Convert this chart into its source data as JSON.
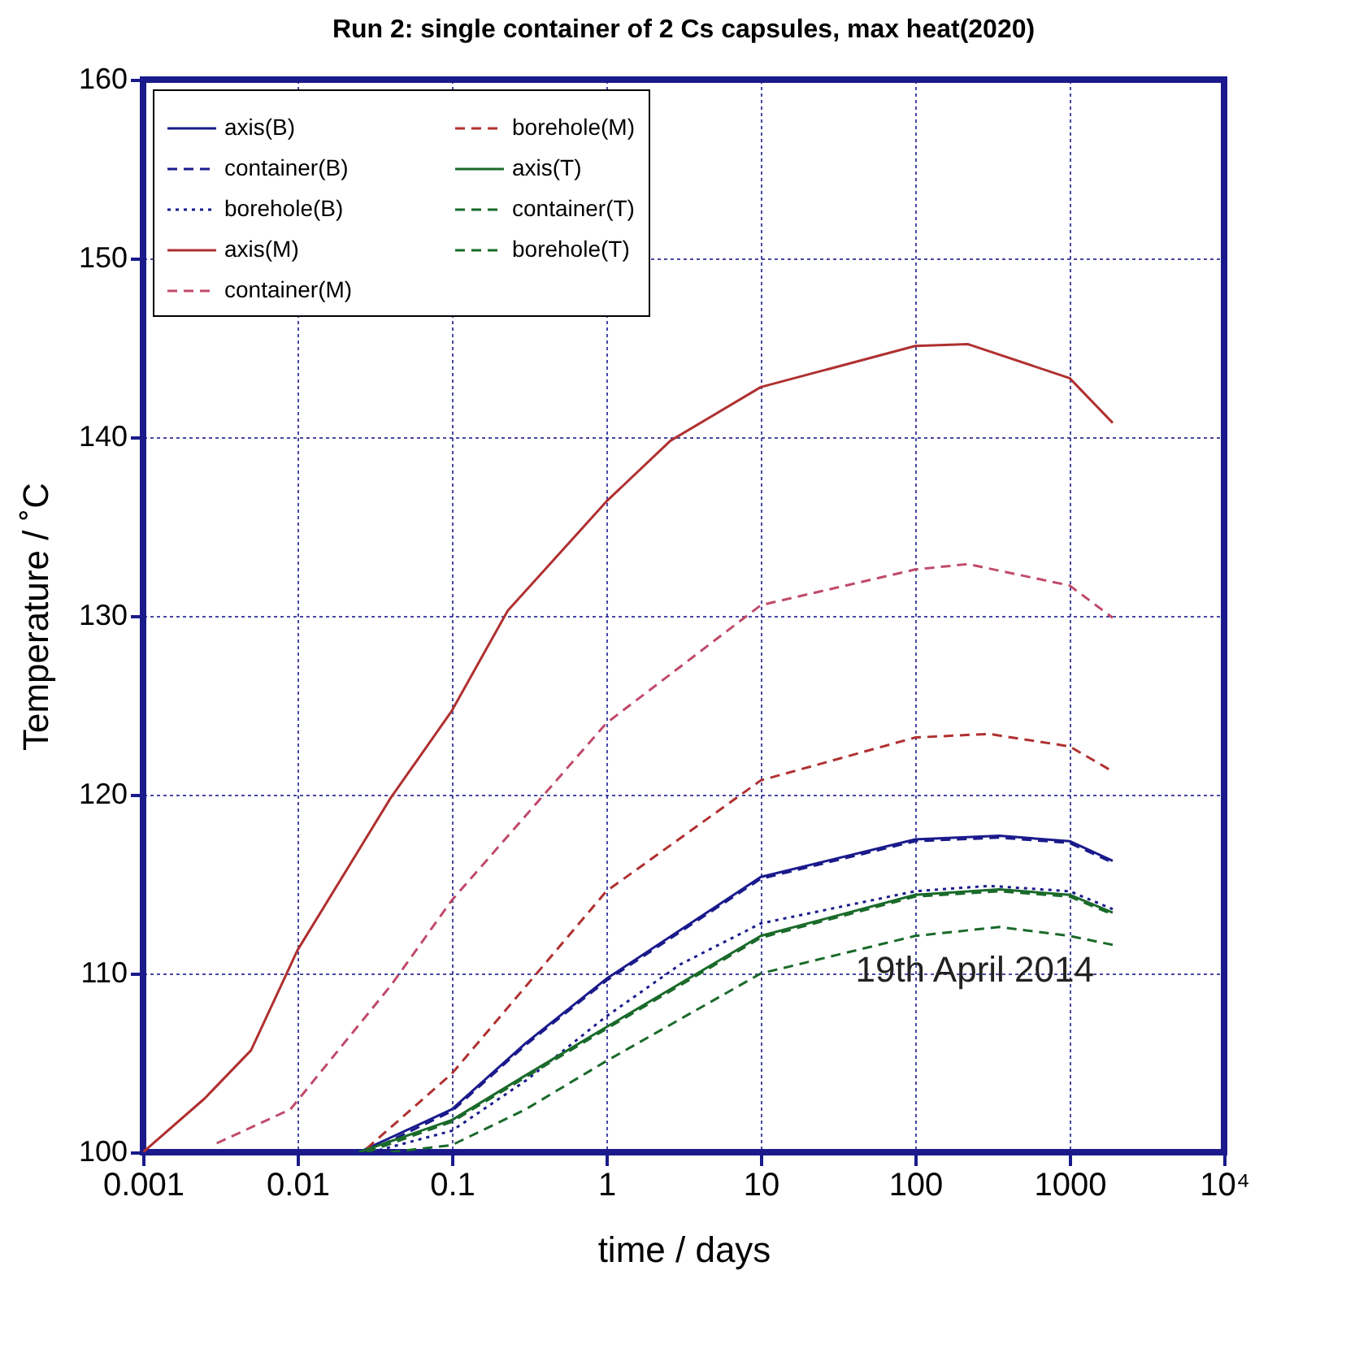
{
  "chart_data": {
    "type": "line",
    "title": "Run 2: single container of 2 Cs capsules, max heat(2020)",
    "xlabel": "time / days",
    "ylabel": "Temperature / ˚C",
    "log": "x",
    "xlim": [
      0.001,
      10000
    ],
    "xticks": [
      0.001,
      0.01,
      0.1,
      1,
      10,
      100,
      1000,
      {
        "value": 10000,
        "label": "10⁴"
      }
    ],
    "ylim": [
      100,
      160
    ],
    "yticks": [
      100,
      110,
      120,
      130,
      140,
      150,
      160
    ],
    "grid": true,
    "legend": "top left",
    "annotations": [
      "19th April 2014"
    ],
    "series": [
      {
        "name": "axis(B)",
        "color": "#1a1a8c",
        "line_style": "solid",
        "x": [
          0.025,
          0.1,
          0.3,
          1,
          10,
          100,
          350,
          1000,
          1900
        ],
        "values": [
          100,
          102.4,
          106.1,
          109.7,
          115.4,
          117.5,
          117.7,
          117.4,
          116.3
        ]
      },
      {
        "name": "container(B)",
        "color": "#1a1a8c",
        "line_style": "dashed",
        "x": [
          0.028,
          0.1,
          0.3,
          1,
          10,
          100,
          350,
          1000,
          1900
        ],
        "values": [
          100,
          102.3,
          106.0,
          109.6,
          115.3,
          117.4,
          117.6,
          117.3,
          116.2
        ]
      },
      {
        "name": "borehole(B)",
        "color": "#1a1a8c",
        "line_style": "dotted",
        "x": [
          0.03,
          0.1,
          0.3,
          1,
          3,
          10,
          100,
          300,
          1000,
          1900
        ],
        "values": [
          100,
          101.2,
          104.0,
          107.6,
          110.5,
          112.8,
          114.6,
          114.9,
          114.6,
          113.6
        ]
      },
      {
        "name": "axis(M)",
        "color": "#b03030",
        "line_style": "solid",
        "x": [
          0.001,
          0.0025,
          0.005,
          0.01,
          0.04,
          0.1,
          0.23,
          1,
          2.6,
          10,
          100,
          220,
          1000,
          1900
        ],
        "values": [
          100,
          103,
          105.7,
          111.3,
          119.8,
          124.7,
          130.3,
          136.4,
          139.8,
          142.8,
          145.1,
          145.2,
          143.3,
          140.8
        ]
      },
      {
        "name": "container(M)",
        "color": "#c04a6a",
        "line_style": "dashed",
        "x": [
          0.003,
          0.009,
          0.04,
          0.1,
          1,
          10,
          100,
          220,
          1000,
          1900
        ],
        "values": [
          100.5,
          102.4,
          109.3,
          114.1,
          124.0,
          130.6,
          132.6,
          132.9,
          131.7,
          129.9
        ]
      },
      {
        "name": "borehole(M)",
        "color": "#b03030",
        "line_style": "dashed",
        "x": [
          0.028,
          0.1,
          1,
          10,
          100,
          300,
          1000,
          1900
        ],
        "values": [
          100.2,
          104.4,
          114.6,
          120.8,
          123.2,
          123.4,
          122.7,
          121.3
        ]
      },
      {
        "name": "axis(T)",
        "color": "#1a6a2a",
        "line_style": "solid",
        "x": [
          0.025,
          0.1,
          0.3,
          1,
          10,
          100,
          350,
          1000,
          1900
        ],
        "values": [
          100,
          101.8,
          104.3,
          107.0,
          112.1,
          114.4,
          114.7,
          114.4,
          113.4
        ]
      },
      {
        "name": "container(T)",
        "color": "#1a6a2a",
        "line_style": "dashed",
        "x": [
          0.028,
          0.1,
          0.3,
          1,
          10,
          100,
          350,
          1000,
          1900
        ],
        "values": [
          100,
          101.7,
          104.2,
          106.9,
          112.0,
          114.3,
          114.6,
          114.3,
          113.3
        ]
      },
      {
        "name": "borehole(T)",
        "color": "#1a6a2a",
        "line_style": "dashed",
        "x": [
          0.04,
          0.1,
          0.3,
          1,
          10,
          100,
          350,
          1000,
          1900
        ],
        "values": [
          100,
          100.4,
          102.4,
          105.1,
          110.0,
          112.1,
          112.6,
          112.1,
          111.6
        ]
      }
    ]
  }
}
